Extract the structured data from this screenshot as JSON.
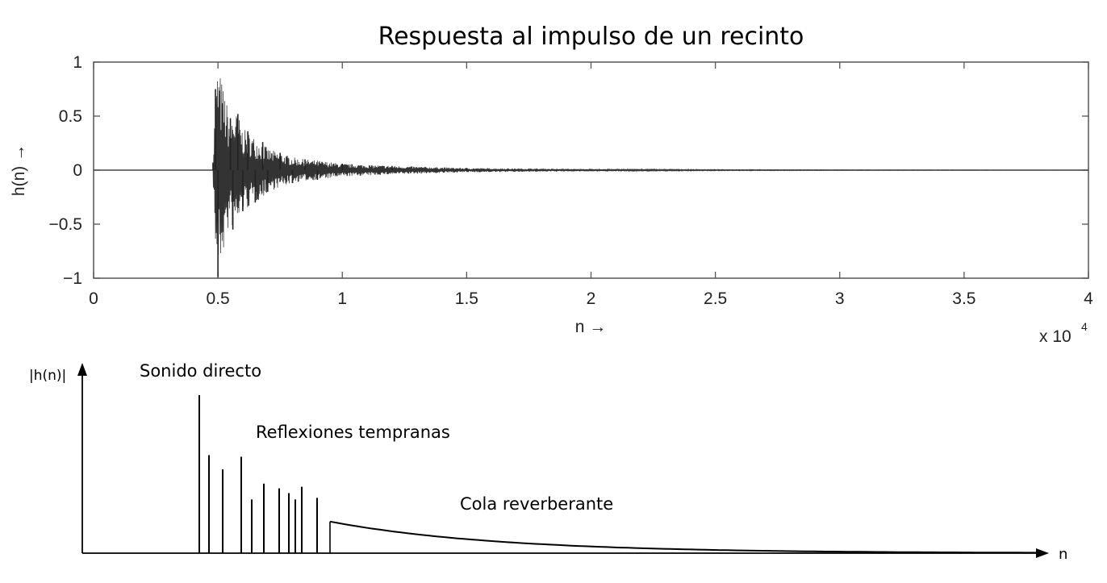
{
  "title": "Respuesta al impulso de un recinto",
  "chart_data": [
    {
      "type": "line",
      "title": "Respuesta al impulso de un recinto",
      "xlabel": "n →",
      "ylabel": "h(n) →",
      "x_multiplier_label": "x 10",
      "x_multiplier_exp": "4",
      "xlim": [
        0,
        4
      ],
      "ylim": [
        -1,
        1
      ],
      "x_ticks": [
        "0",
        "0.5",
        "1",
        "1.5",
        "2",
        "2.5",
        "3",
        "3.5",
        "4"
      ],
      "y_ticks": [
        "1",
        "0.5",
        "0",
        "−0.5",
        "−1"
      ],
      "grid": false,
      "series": [
        {
          "x": [
            0.48,
            0.49,
            0.5,
            0.55,
            0.56,
            0.58,
            0.6,
            0.62,
            0.65,
            0.68,
            0.7,
            0.75,
            0.8,
            0.85,
            0.9,
            1.0,
            1.2,
            1.5,
            2.0,
            2.5,
            3.0,
            3.5,
            4.0
          ],
          "y": [
            0.07,
            0.75,
            -0.99,
            0.48,
            -0.55,
            0.52,
            -0.38,
            0.36,
            -0.3,
            0.26,
            -0.2,
            0.16,
            -0.12,
            0.1,
            -0.09,
            0.06,
            0.04,
            0.02,
            0.01,
            0.005,
            0.003,
            0.002,
            0.0
          ]
        }
      ]
    },
    {
      "type": "bar",
      "ylabel": "|h(n)|",
      "xlabel": "n",
      "annotations": [
        "Sonido directo",
        "Reflexiones tempranas",
        "Cola reverberante"
      ],
      "direct_sound": 1.0,
      "early_reflections": [
        0.62,
        0.53,
        0.61,
        0.34,
        0.44,
        0.41,
        0.38,
        0.34,
        0.42,
        0.35
      ],
      "reverberant_tail_start": 0.2,
      "reverberant_tail_end": 0.0
    }
  ]
}
